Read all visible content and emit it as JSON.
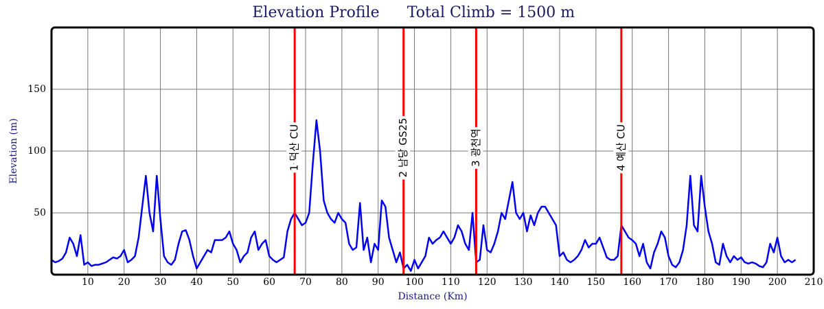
{
  "chart_data": {
    "type": "line",
    "title": "Elevation Profile",
    "annotation": "Total Climb = 1500 m",
    "xlabel": "Distance (Km)",
    "ylabel": "Elevation (m)",
    "color": "#0000ee",
    "grid": true,
    "xlim": [
      0,
      210
    ],
    "xticks": [
      10,
      20,
      30,
      40,
      50,
      60,
      70,
      80,
      90,
      100,
      110,
      120,
      130,
      140,
      150,
      160,
      170,
      180,
      190,
      200,
      210
    ],
    "ylim": [
      0,
      200
    ],
    "yticks": [
      50,
      100,
      150
    ],
    "markers": [
      {
        "x": 67,
        "label": "1 덕산 CU"
      },
      {
        "x": 97,
        "label": "2 남당 GS25"
      },
      {
        "x": 117,
        "label": "3 광천역"
      },
      {
        "x": 157,
        "label": "4 예산 CU"
      }
    ],
    "marker_color": "#ff0000",
    "x": [
      0,
      1,
      2,
      3,
      4,
      5,
      6,
      7,
      8,
      9,
      10,
      11,
      12,
      13,
      14,
      15,
      16,
      17,
      18,
      19,
      20,
      21,
      22,
      23,
      24,
      25,
      26,
      27,
      28,
      29,
      30,
      31,
      32,
      33,
      34,
      35,
      36,
      37,
      38,
      39,
      40,
      41,
      42,
      43,
      44,
      45,
      46,
      47,
      48,
      49,
      50,
      51,
      52,
      53,
      54,
      55,
      56,
      57,
      58,
      59,
      60,
      61,
      62,
      63,
      64,
      65,
      66,
      67,
      68,
      69,
      70,
      71,
      72,
      73,
      74,
      75,
      76,
      77,
      78,
      79,
      80,
      81,
      82,
      83,
      84,
      85,
      86,
      87,
      88,
      89,
      90,
      91,
      92,
      93,
      94,
      95,
      96,
      97,
      98,
      99,
      100,
      101,
      102,
      103,
      104,
      105,
      106,
      107,
      108,
      109,
      110,
      111,
      112,
      113,
      114,
      115,
      116,
      117,
      118,
      119,
      120,
      121,
      122,
      123,
      124,
      125,
      126,
      127,
      128,
      129,
      130,
      131,
      132,
      133,
      134,
      135,
      136,
      137,
      138,
      139,
      140,
      141,
      142,
      143,
      144,
      145,
      146,
      147,
      148,
      149,
      150,
      151,
      152,
      153,
      154,
      155,
      156,
      157,
      158,
      159,
      160,
      161,
      162,
      163,
      164,
      165,
      166,
      167,
      168,
      169,
      170,
      171,
      172,
      173,
      174,
      175,
      176,
      177,
      178,
      179,
      180,
      181,
      182,
      183,
      184,
      185,
      186,
      187,
      188,
      189,
      190,
      191,
      192,
      193,
      194,
      195,
      196,
      197,
      198,
      199,
      200,
      201,
      202,
      203,
      204,
      205
    ],
    "values": [
      12,
      10,
      11,
      13,
      18,
      30,
      25,
      15,
      32,
      8,
      10,
      7,
      8,
      8,
      9,
      10,
      12,
      14,
      13,
      15,
      20,
      10,
      12,
      15,
      30,
      55,
      80,
      50,
      35,
      80,
      45,
      15,
      10,
      8,
      12,
      25,
      35,
      36,
      28,
      15,
      5,
      10,
      15,
      20,
      18,
      28,
      28,
      28,
      30,
      35,
      25,
      20,
      10,
      15,
      18,
      30,
      35,
      20,
      25,
      28,
      15,
      12,
      10,
      12,
      14,
      35,
      45,
      50,
      45,
      40,
      42,
      50,
      90,
      125,
      100,
      60,
      50,
      45,
      42,
      50,
      45,
      42,
      25,
      20,
      22,
      58,
      20,
      30,
      10,
      25,
      20,
      60,
      55,
      30,
      20,
      10,
      18,
      5,
      8,
      3,
      12,
      5,
      10,
      15,
      30,
      25,
      28,
      30,
      35,
      30,
      25,
      30,
      40,
      35,
      25,
      20,
      50,
      10,
      12,
      40,
      20,
      18,
      25,
      35,
      50,
      45,
      60,
      75,
      50,
      45,
      50,
      35,
      48,
      40,
      50,
      55,
      55,
      50,
      45,
      40,
      15,
      18,
      12,
      10,
      12,
      15,
      20,
      28,
      22,
      25,
      25,
      30,
      22,
      14,
      12,
      12,
      15,
      40,
      35,
      30,
      28,
      25,
      15,
      25,
      10,
      5,
      18,
      25,
      35,
      30,
      15,
      8,
      6,
      10,
      20,
      40,
      80,
      40,
      35,
      80,
      55,
      35,
      25,
      10,
      8,
      25,
      15,
      10,
      15,
      12,
      14,
      10,
      9,
      10,
      9,
      7,
      6,
      10,
      25,
      18,
      30,
      15,
      10,
      12,
      10,
      12
    ]
  }
}
